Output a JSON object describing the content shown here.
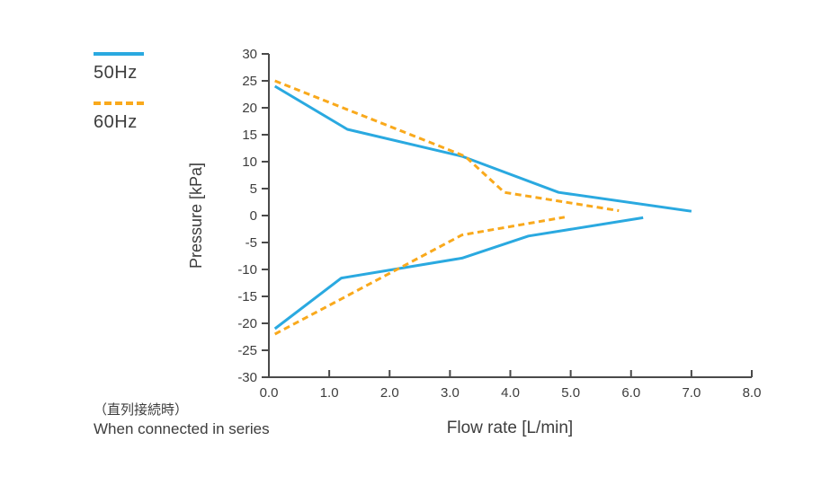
{
  "legend": {
    "items": [
      {
        "label": "50Hz",
        "color": "#2aa9e0",
        "style": "solid"
      },
      {
        "label": "60Hz",
        "color": "#f9a91c",
        "style": "dashed"
      }
    ]
  },
  "footnote": {
    "jp": "（直列接続時）",
    "en": "When connected in series"
  },
  "colors": {
    "series_50hz": "#2aa9e0",
    "series_60hz": "#f9a91c",
    "axis": "#4a4a4a",
    "text": "#3d3d3d"
  },
  "chart_data": {
    "type": "line",
    "title": "",
    "xlabel": "Flow rate [L/min]",
    "ylabel": "Pressure [kPa]",
    "xlim": [
      0,
      8
    ],
    "ylim": [
      -30,
      30
    ],
    "grid": false,
    "legend_position": "outside-upper-left",
    "x_ticks": {
      "values": [
        0,
        1,
        2,
        3,
        4,
        5,
        6,
        7,
        8
      ],
      "labels": [
        "0.0",
        "1.0",
        "2.0",
        "3.0",
        "4.0",
        "5.0",
        "6.0",
        "7.0",
        "8.0"
      ]
    },
    "y_ticks": {
      "values": [
        30,
        25,
        20,
        15,
        10,
        5,
        0,
        -5,
        -10,
        -15,
        -20,
        -25,
        -30
      ],
      "labels": [
        "30",
        "25",
        "20",
        "15",
        "10",
        "5",
        "0",
        "-5",
        "-10",
        "-15",
        "-20",
        "-25",
        "-30"
      ]
    },
    "series": [
      {
        "name": "50Hz",
        "color": "#2aa9e0",
        "style": "solid",
        "segments": [
          {
            "branch": "positive-pressure",
            "points": [
              [
                0.1,
                24
              ],
              [
                1.3,
                16
              ],
              [
                3.2,
                11
              ],
              [
                4.8,
                4.3
              ],
              [
                7.0,
                0.8
              ]
            ]
          },
          {
            "branch": "vacuum",
            "points": [
              [
                0.1,
                -21
              ],
              [
                1.2,
                -11.6
              ],
              [
                3.2,
                -7.9
              ],
              [
                4.3,
                -3.8
              ],
              [
                6.2,
                -0.4
              ]
            ]
          }
        ]
      },
      {
        "name": "60Hz",
        "color": "#f9a91c",
        "style": "dashed",
        "segments": [
          {
            "branch": "positive-pressure",
            "points": [
              [
                0.1,
                25
              ],
              [
                3.25,
                11
              ],
              [
                3.9,
                4.3
              ],
              [
                5.8,
                0.9
              ]
            ]
          },
          {
            "branch": "vacuum",
            "points": [
              [
                0.1,
                -22
              ],
              [
                3.2,
                -3.6
              ],
              [
                4.9,
                -0.3
              ]
            ]
          }
        ]
      }
    ]
  }
}
